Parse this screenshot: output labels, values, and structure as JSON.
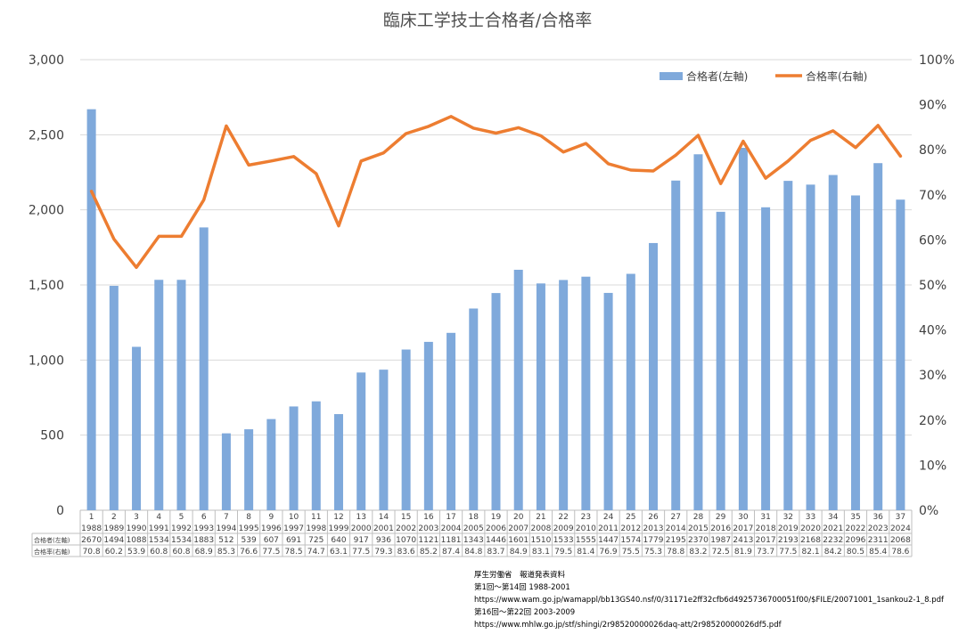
{
  "chart_data": {
    "type": "bar",
    "title": "臨床工学技士合格者/合格率",
    "kai": [
      "1",
      "2",
      "3",
      "4",
      "5",
      "6",
      "7",
      "8",
      "9",
      "10",
      "11",
      "12",
      "13",
      "14",
      "15",
      "16",
      "17",
      "18",
      "19",
      "20",
      "21",
      "22",
      "23",
      "24",
      "25",
      "26",
      "27",
      "28",
      "29",
      "30",
      "31",
      "32",
      "33",
      "34",
      "35",
      "36",
      "37"
    ],
    "years": [
      "1988",
      "1989",
      "1990",
      "1991",
      "1992",
      "1993",
      "1994",
      "1995",
      "1996",
      "1997",
      "1998",
      "1999",
      "2000",
      "2001",
      "2002",
      "2003",
      "2004",
      "2005",
      "2006",
      "2007",
      "2008",
      "2009",
      "2010",
      "2011",
      "2012",
      "2013",
      "2014",
      "2015",
      "2016",
      "2017",
      "2018",
      "2019",
      "2020",
      "2021",
      "2022",
      "2023",
      "2024"
    ],
    "y_left_ticks": [
      "0",
      "500",
      "1,000",
      "1,500",
      "2,000",
      "2,500",
      "3,000"
    ],
    "y_right_ticks": [
      "0%",
      "10%",
      "20%",
      "30%",
      "40%",
      "50%",
      "60%",
      "70%",
      "80%",
      "90%",
      "100%"
    ],
    "y_left_lim": [
      0,
      3000
    ],
    "y_right_lim": [
      0,
      100
    ],
    "legend_position": "top-right",
    "grid": true,
    "series": [
      {
        "name": "合格者(左軸)",
        "type": "bar",
        "axis": "left",
        "color": "#7fa9db",
        "row_label": "合格者(左軸)",
        "values": [
          2670,
          1494,
          1088,
          1534,
          1534,
          1883,
          512,
          539,
          607,
          691,
          725,
          640,
          917,
          936,
          1070,
          1121,
          1181,
          1343,
          1446,
          1601,
          1510,
          1533,
          1555,
          1447,
          1574,
          1779,
          2195,
          2370,
          1987,
          2413,
          2017,
          2193,
          2168,
          2232,
          2096,
          2311,
          2068
        ]
      },
      {
        "name": "合格率(右軸)",
        "type": "line",
        "axis": "right",
        "color": "#ed7d31",
        "row_label": "合格率(右軸)",
        "values": [
          70.8,
          60.2,
          53.9,
          60.8,
          60.8,
          68.9,
          85.3,
          76.6,
          77.5,
          78.5,
          74.7,
          63.1,
          77.5,
          79.3,
          83.6,
          85.2,
          87.4,
          84.8,
          83.7,
          84.9,
          83.1,
          79.5,
          81.4,
          76.9,
          75.5,
          75.3,
          78.8,
          83.2,
          72.5,
          81.9,
          73.7,
          77.5,
          82.1,
          84.2,
          80.5,
          85.4,
          78.6
        ]
      }
    ]
  },
  "source": {
    "lines": [
      "厚生労働省　報道発表資料",
      "第1回～第14回 1988-2001",
      "https://www.wam.go.jp/wamappl/bb13GS40.nsf/0/31171e2ff32cfb6d4925736700051f00/$FILE/20071001_1sankou2-1_8.pdf",
      "第16回～第22回 2003-2009",
      "https://www.mhlw.go.jp/stf/shingi/2r98520000026daq-att/2r98520000026df5.pdf"
    ]
  }
}
